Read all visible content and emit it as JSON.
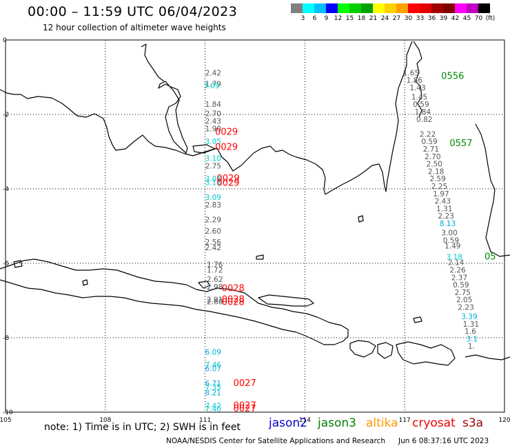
{
  "header": {
    "title": "00:00 – 11:59 UTC 06/04/2023",
    "subtitle": "12 hour collection of altimeter wave heights"
  },
  "legend": {
    "unit": "(ft)",
    "colors": [
      "#808080",
      "#00ffff",
      "#00c0ff",
      "#0000ff",
      "#00ff00",
      "#00d000",
      "#00a000",
      "#ffff00",
      "#ffd000",
      "#ffa000",
      "#ff0000",
      "#e00000",
      "#a00000",
      "#800000",
      "#ff00ff",
      "#c000c0",
      "#000000"
    ],
    "labels": [
      "3",
      "6",
      "9",
      "12",
      "15",
      "18",
      "21",
      "24",
      "27",
      "30",
      "33",
      "36",
      "39",
      "42",
      "45",
      "70"
    ]
  },
  "axes": {
    "x_ticks": [
      "105",
      "108",
      "111",
      "114",
      "117",
      "120"
    ],
    "y_ticks": [
      "0",
      "-2",
      "-4",
      "-6",
      "-8",
      "-10"
    ]
  },
  "satellites": [
    {
      "name": "jason2",
      "color": "#0000cc"
    },
    {
      "name": "jason3",
      "color": "#008000"
    },
    {
      "name": "altika",
      "color": "#ff9900"
    },
    {
      "name": "cryosat",
      "color": "#ee0000"
    },
    {
      "name": "s3a",
      "color": "#990000"
    }
  ],
  "note": "note: 1) Time is in UTC; 2) SWH is in feet",
  "footer": {
    "credit": "NOAA/NESDIS Center for Satellite Applications and Research",
    "timestamp": "Jun  6 08:37:16 UTC 2023"
  },
  "observations": [
    {
      "lon": 111.0,
      "lat": -0.95,
      "v": "2.42",
      "c": "#555555"
    },
    {
      "lon": 111.0,
      "lat": -1.25,
      "v": "1.79",
      "c": "#555555"
    },
    {
      "lon": 110.95,
      "lat": -1.3,
      "v": "3.09",
      "c": "#00cccc"
    },
    {
      "lon": 111.0,
      "lat": -1.8,
      "v": "1.84",
      "c": "#555555"
    },
    {
      "lon": 111.0,
      "lat": -2.05,
      "v": "2.70",
      "c": "#555555"
    },
    {
      "lon": 111.0,
      "lat": -2.25,
      "v": "2.43",
      "c": "#555555"
    },
    {
      "lon": 111.0,
      "lat": -2.45,
      "v": "1.90",
      "c": "#555555"
    },
    {
      "lon": 111.0,
      "lat": -2.8,
      "v": "3.05",
      "c": "#00cccc"
    },
    {
      "lon": 111.0,
      "lat": -3.25,
      "v": "3.10",
      "c": "#00cccc"
    },
    {
      "lon": 111.0,
      "lat": -3.45,
      "v": "2.75",
      "c": "#555555"
    },
    {
      "lon": 111.0,
      "lat": -3.8,
      "v": "3.08",
      "c": "#00cccc"
    },
    {
      "lon": 111.0,
      "lat": -3.9,
      "v": "3.18",
      "c": "#00cccc"
    },
    {
      "lon": 111.0,
      "lat": -4.3,
      "v": "3.09",
      "c": "#00cccc"
    },
    {
      "lon": 111.0,
      "lat": -4.5,
      "v": "2.83",
      "c": "#555555"
    },
    {
      "lon": 111.0,
      "lat": -4.9,
      "v": "2.29",
      "c": "#555555"
    },
    {
      "lon": 111.0,
      "lat": -5.2,
      "v": "2.60",
      "c": "#555555"
    },
    {
      "lon": 111.0,
      "lat": -5.5,
      "v": "2.56",
      "c": "#555555"
    },
    {
      "lon": 111.0,
      "lat": -5.65,
      "v": "2.42",
      "c": "#555555"
    },
    {
      "lon": 111.05,
      "lat": -6.1,
      "v": "1.76",
      "c": "#555555"
    },
    {
      "lon": 111.05,
      "lat": -6.25,
      "v": "1.72",
      "c": "#555555"
    },
    {
      "lon": 111.05,
      "lat": -6.5,
      "v": "2.62",
      "c": "#555555"
    },
    {
      "lon": 111.05,
      "lat": -6.7,
      "v": "2.98",
      "c": "#555555"
    },
    {
      "lon": 111.05,
      "lat": -7.05,
      "v": "2.91",
      "c": "#555555"
    },
    {
      "lon": 111.05,
      "lat": -7.1,
      "v": "2.60",
      "c": "#555555"
    },
    {
      "lon": 111.0,
      "lat": -8.45,
      "v": "6.09",
      "c": "#00aadd"
    },
    {
      "lon": 111.0,
      "lat": -8.8,
      "v": "7.46",
      "c": "#00cccc"
    },
    {
      "lon": 111.0,
      "lat": -8.9,
      "v": "6.07",
      "c": "#00aadd"
    },
    {
      "lon": 111.0,
      "lat": -9.3,
      "v": "6.71",
      "c": "#00aadd"
    },
    {
      "lon": 111.0,
      "lat": -9.4,
      "v": "7.35",
      "c": "#00cccc"
    },
    {
      "lon": 111.0,
      "lat": -9.55,
      "v": "8.21",
      "c": "#00aadd"
    },
    {
      "lon": 111.0,
      "lat": -9.9,
      "v": "7.42",
      "c": "#00cccc"
    },
    {
      "lon": 111.0,
      "lat": -9.98,
      "v": "7.40",
      "c": "#00cccc"
    },
    {
      "lon": 116.95,
      "lat": -0.95,
      "v": "1.65",
      "c": "#555555"
    },
    {
      "lon": 117.05,
      "lat": -1.15,
      "v": "1.86",
      "c": "#555555"
    },
    {
      "lon": 117.15,
      "lat": -1.35,
      "v": "1.43",
      "c": "#555555"
    },
    {
      "lon": 117.2,
      "lat": -1.6,
      "v": "1.45",
      "c": "#555555"
    },
    {
      "lon": 117.25,
      "lat": -1.8,
      "v": "0.59",
      "c": "#555555"
    },
    {
      "lon": 117.3,
      "lat": -2.0,
      "v": "1.84",
      "c": "#555555"
    },
    {
      "lon": 117.35,
      "lat": -2.2,
      "v": "0.82",
      "c": "#555555"
    },
    {
      "lon": 117.45,
      "lat": -2.6,
      "v": "2.22",
      "c": "#555555"
    },
    {
      "lon": 117.5,
      "lat": -2.8,
      "v": "0.59",
      "c": "#555555"
    },
    {
      "lon": 117.55,
      "lat": -3.0,
      "v": "2.71",
      "c": "#555555"
    },
    {
      "lon": 117.6,
      "lat": -3.2,
      "v": "2.70",
      "c": "#555555"
    },
    {
      "lon": 117.65,
      "lat": -3.4,
      "v": "2.50",
      "c": "#555555"
    },
    {
      "lon": 117.7,
      "lat": -3.6,
      "v": "2.18",
      "c": "#555555"
    },
    {
      "lon": 117.75,
      "lat": -3.8,
      "v": "2.59",
      "c": "#555555"
    },
    {
      "lon": 117.8,
      "lat": -4.0,
      "v": "2.25",
      "c": "#555555"
    },
    {
      "lon": 117.85,
      "lat": -4.2,
      "v": "1.97",
      "c": "#555555"
    },
    {
      "lon": 117.9,
      "lat": -4.4,
      "v": "2.43",
      "c": "#555555"
    },
    {
      "lon": 117.95,
      "lat": -4.6,
      "v": "1.31",
      "c": "#555555"
    },
    {
      "lon": 118.0,
      "lat": -4.8,
      "v": "2.23",
      "c": "#555555"
    },
    {
      "lon": 118.05,
      "lat": -5.0,
      "v": "8.13",
      "c": "#00aadd"
    },
    {
      "lon": 118.1,
      "lat": -5.25,
      "v": "3.00",
      "c": "#555555"
    },
    {
      "lon": 118.15,
      "lat": -5.45,
      "v": "0.59",
      "c": "#555555"
    },
    {
      "lon": 118.2,
      "lat": -5.6,
      "v": "1.49",
      "c": "#555555"
    },
    {
      "lon": 118.25,
      "lat": -5.9,
      "v": "3.18",
      "c": "#00cccc"
    },
    {
      "lon": 118.3,
      "lat": -6.05,
      "v": "2.14",
      "c": "#555555"
    },
    {
      "lon": 118.35,
      "lat": -6.25,
      "v": "2.26",
      "c": "#555555"
    },
    {
      "lon": 118.4,
      "lat": -6.45,
      "v": "2.37",
      "c": "#555555"
    },
    {
      "lon": 118.45,
      "lat": -6.65,
      "v": "0.59",
      "c": "#555555"
    },
    {
      "lon": 118.5,
      "lat": -6.85,
      "v": "2.75",
      "c": "#555555"
    },
    {
      "lon": 118.55,
      "lat": -7.05,
      "v": "2.05",
      "c": "#555555"
    },
    {
      "lon": 118.6,
      "lat": -7.25,
      "v": "2.23",
      "c": "#555555"
    },
    {
      "lon": 118.7,
      "lat": -7.5,
      "v": "3.39",
      "c": "#00aadd"
    },
    {
      "lon": 118.75,
      "lat": -7.7,
      "v": "1.31",
      "c": "#555555"
    },
    {
      "lon": 118.8,
      "lat": -7.9,
      "v": "1.6",
      "c": "#555555"
    },
    {
      "lon": 118.85,
      "lat": -8.1,
      "v": "3.1",
      "c": "#00aadd"
    },
    {
      "lon": 118.9,
      "lat": -8.3,
      "v": "1.",
      "c": "#555555"
    }
  ],
  "pass_labels": [
    {
      "lon": 111.3,
      "lat": -2.55,
      "v": "0029",
      "c": "#ff0000"
    },
    {
      "lon": 111.3,
      "lat": -2.95,
      "v": "0029",
      "c": "#ff0000"
    },
    {
      "lon": 111.35,
      "lat": -3.8,
      "v": "0029",
      "c": "#ff0000"
    },
    {
      "lon": 111.35,
      "lat": -3.92,
      "v": "0029",
      "c": "#ff0000"
    },
    {
      "lon": 111.5,
      "lat": -6.75,
      "v": "0028",
      "c": "#ff0000"
    },
    {
      "lon": 111.5,
      "lat": -7.05,
      "v": "0028",
      "c": "#ff0000"
    },
    {
      "lon": 111.5,
      "lat": -7.12,
      "v": "0028",
      "c": "#ff0000"
    },
    {
      "lon": 111.85,
      "lat": -9.3,
      "v": "0027",
      "c": "#ff0000"
    },
    {
      "lon": 111.85,
      "lat": -9.9,
      "v": "0027",
      "c": "#ff0000"
    },
    {
      "lon": 111.85,
      "lat": -9.98,
      "v": "0027",
      "c": "#ff0000"
    },
    {
      "lon": 118.1,
      "lat": -1.05,
      "v": "0556",
      "c": "#008800"
    },
    {
      "lon": 118.35,
      "lat": -2.85,
      "v": "0557",
      "c": "#008800"
    },
    {
      "lon": 119.4,
      "lat": -5.9,
      "v": "05",
      "c": "#008800"
    }
  ]
}
